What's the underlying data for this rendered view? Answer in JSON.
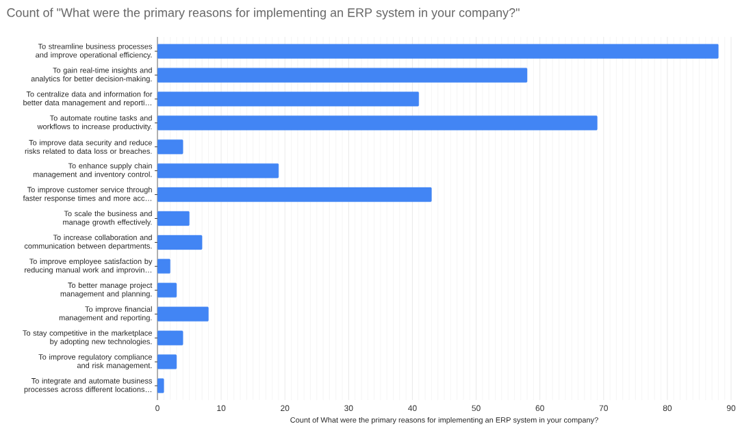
{
  "chart_data": {
    "type": "bar",
    "orientation": "horizontal",
    "title": "Count of \"What were the primary reasons for implementing an ERP system in your company?\"",
    "xlabel": "Count of What were the primary reasons for implementing an ERP system in your company?",
    "categories": [
      "To streamline business processes and improve operational efficiency.",
      "To gain real-time insights and analytics for better decision-making.",
      "To centralize data and information for better data management and reporti…",
      "To automate routine tasks and workflows to increase productivity.",
      "To improve data security and reduce risks related to data loss or breaches.",
      "To enhance supply chain management and inventory control.",
      "To improve customer service through faster response times and more acc…",
      "To scale the business and manage growth effectively.",
      "To increase collaboration and communication between departments.",
      "To improve employee satisfaction by reducing manual work and improvin…",
      "To better manage project management and planning.",
      "To improve financial management and reporting.",
      "To stay competitive in the marketplace by adopting new technologies.",
      "To improve regulatory compliance and risk management.",
      "To integrate and automate business processes across different locations…"
    ],
    "values": [
      88,
      58,
      41,
      69,
      4,
      19,
      43,
      5,
      7,
      2,
      3,
      8,
      4,
      3,
      1
    ],
    "color": "#4285f4",
    "xlim": [
      0,
      90
    ],
    "xticks": [
      0,
      10,
      20,
      30,
      40,
      50,
      60,
      70,
      80,
      90
    ],
    "grid": "x"
  }
}
